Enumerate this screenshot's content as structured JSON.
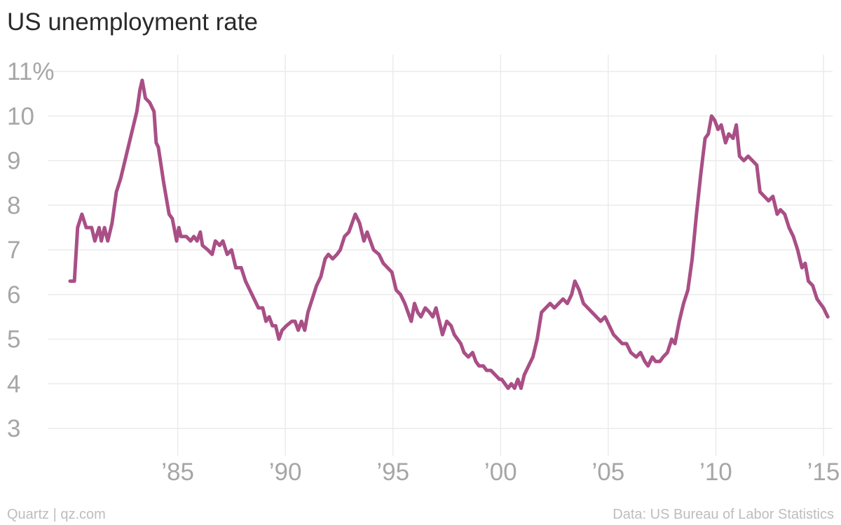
{
  "page": {
    "source_left": "Quartz | qz.com",
    "source_right": "Data: US Bureau of Labor Statistics"
  },
  "colors": {
    "line": "#a94f86",
    "grid": "#ebebeb",
    "tick_label": "#a6a6a6",
    "title": "#2a2a2a",
    "footer": "#bdbdbd"
  },
  "chart_data": {
    "type": "line",
    "title": "US unemployment rate",
    "xlabel": "",
    "ylabel": "",
    "y_range": [
      3,
      11
    ],
    "x_range": [
      1980.0,
      2015.2
    ],
    "grid": true,
    "y_ticks": [
      {
        "value": 3,
        "label": "3"
      },
      {
        "value": 4,
        "label": "4"
      },
      {
        "value": 5,
        "label": "5"
      },
      {
        "value": 6,
        "label": "6"
      },
      {
        "value": 7,
        "label": "7"
      },
      {
        "value": 8,
        "label": "8"
      },
      {
        "value": 9,
        "label": "9"
      },
      {
        "value": 10,
        "label": "10"
      },
      {
        "value": 11,
        "label": "11%"
      }
    ],
    "x_ticks": [
      {
        "value": 1985,
        "label": "’85"
      },
      {
        "value": 1990,
        "label": "’90"
      },
      {
        "value": 1995,
        "label": "’95"
      },
      {
        "value": 2000,
        "label": "’00"
      },
      {
        "value": 2005,
        "label": "’05"
      },
      {
        "value": 2010,
        "label": "’10"
      },
      {
        "value": 2015,
        "label": "’15"
      }
    ],
    "series": [
      {
        "values": [
          [
            1980.0,
            6.3
          ],
          [
            1980.2,
            6.3
          ],
          [
            1980.35,
            7.5
          ],
          [
            1980.55,
            7.8
          ],
          [
            1980.75,
            7.5
          ],
          [
            1981.0,
            7.5
          ],
          [
            1981.15,
            7.2
          ],
          [
            1981.35,
            7.5
          ],
          [
            1981.45,
            7.2
          ],
          [
            1981.6,
            7.5
          ],
          [
            1981.75,
            7.2
          ],
          [
            1981.95,
            7.6
          ],
          [
            1982.15,
            8.3
          ],
          [
            1982.35,
            8.6
          ],
          [
            1982.55,
            9.0
          ],
          [
            1982.75,
            9.4
          ],
          [
            1982.95,
            9.8
          ],
          [
            1983.1,
            10.1
          ],
          [
            1983.25,
            10.6
          ],
          [
            1983.35,
            10.8
          ],
          [
            1983.5,
            10.4
          ],
          [
            1983.7,
            10.3
          ],
          [
            1983.9,
            10.1
          ],
          [
            1984.0,
            9.4
          ],
          [
            1984.1,
            9.3
          ],
          [
            1984.35,
            8.5
          ],
          [
            1984.6,
            7.8
          ],
          [
            1984.75,
            7.7
          ],
          [
            1984.95,
            7.2
          ],
          [
            1985.05,
            7.5
          ],
          [
            1985.15,
            7.3
          ],
          [
            1985.4,
            7.3
          ],
          [
            1985.6,
            7.2
          ],
          [
            1985.75,
            7.3
          ],
          [
            1985.9,
            7.2
          ],
          [
            1986.05,
            7.4
          ],
          [
            1986.15,
            7.1
          ],
          [
            1986.4,
            7.0
          ],
          [
            1986.6,
            6.9
          ],
          [
            1986.75,
            7.2
          ],
          [
            1986.95,
            7.1
          ],
          [
            1987.1,
            7.2
          ],
          [
            1987.3,
            6.9
          ],
          [
            1987.5,
            7.0
          ],
          [
            1987.7,
            6.6
          ],
          [
            1987.95,
            6.6
          ],
          [
            1988.15,
            6.3
          ],
          [
            1988.35,
            6.1
          ],
          [
            1988.55,
            5.9
          ],
          [
            1988.75,
            5.7
          ],
          [
            1988.95,
            5.7
          ],
          [
            1989.1,
            5.4
          ],
          [
            1989.25,
            5.5
          ],
          [
            1989.4,
            5.3
          ],
          [
            1989.55,
            5.3
          ],
          [
            1989.7,
            5.0
          ],
          [
            1989.85,
            5.2
          ],
          [
            1990.05,
            5.3
          ],
          [
            1990.3,
            5.4
          ],
          [
            1990.45,
            5.4
          ],
          [
            1990.6,
            5.2
          ],
          [
            1990.75,
            5.4
          ],
          [
            1990.9,
            5.2
          ],
          [
            1991.05,
            5.6
          ],
          [
            1991.25,
            5.9
          ],
          [
            1991.45,
            6.2
          ],
          [
            1991.65,
            6.4
          ],
          [
            1991.85,
            6.8
          ],
          [
            1992.0,
            6.9
          ],
          [
            1992.2,
            6.8
          ],
          [
            1992.4,
            6.9
          ],
          [
            1992.55,
            7.0
          ],
          [
            1992.75,
            7.3
          ],
          [
            1992.95,
            7.4
          ],
          [
            1993.1,
            7.6
          ],
          [
            1993.25,
            7.8
          ],
          [
            1993.45,
            7.6
          ],
          [
            1993.65,
            7.2
          ],
          [
            1993.8,
            7.4
          ],
          [
            1993.95,
            7.2
          ],
          [
            1994.1,
            7.0
          ],
          [
            1994.35,
            6.9
          ],
          [
            1994.55,
            6.7
          ],
          [
            1994.75,
            6.6
          ],
          [
            1994.95,
            6.5
          ],
          [
            1995.15,
            6.1
          ],
          [
            1995.35,
            6.0
          ],
          [
            1995.55,
            5.8
          ],
          [
            1995.7,
            5.6
          ],
          [
            1995.85,
            5.4
          ],
          [
            1996.0,
            5.8
          ],
          [
            1996.15,
            5.6
          ],
          [
            1996.3,
            5.5
          ],
          [
            1996.5,
            5.7
          ],
          [
            1996.7,
            5.6
          ],
          [
            1996.85,
            5.5
          ],
          [
            1997.0,
            5.7
          ],
          [
            1997.15,
            5.4
          ],
          [
            1997.3,
            5.1
          ],
          [
            1997.5,
            5.4
          ],
          [
            1997.7,
            5.3
          ],
          [
            1997.85,
            5.1
          ],
          [
            1998.0,
            5.0
          ],
          [
            1998.15,
            4.9
          ],
          [
            1998.3,
            4.7
          ],
          [
            1998.5,
            4.6
          ],
          [
            1998.7,
            4.7
          ],
          [
            1998.85,
            4.5
          ],
          [
            1999.0,
            4.4
          ],
          [
            1999.2,
            4.4
          ],
          [
            1999.35,
            4.3
          ],
          [
            1999.55,
            4.3
          ],
          [
            1999.75,
            4.2
          ],
          [
            1999.95,
            4.1
          ],
          [
            2000.05,
            4.1
          ],
          [
            2000.2,
            4.0
          ],
          [
            2000.35,
            3.9
          ],
          [
            2000.5,
            4.0
          ],
          [
            2000.65,
            3.9
          ],
          [
            2000.8,
            4.1
          ],
          [
            2000.95,
            3.9
          ],
          [
            2001.1,
            4.2
          ],
          [
            2001.3,
            4.4
          ],
          [
            2001.5,
            4.6
          ],
          [
            2001.7,
            5.0
          ],
          [
            2001.9,
            5.6
          ],
          [
            2002.1,
            5.7
          ],
          [
            2002.3,
            5.8
          ],
          [
            2002.5,
            5.7
          ],
          [
            2002.7,
            5.8
          ],
          [
            2002.9,
            5.9
          ],
          [
            2003.1,
            5.8
          ],
          [
            2003.3,
            6.0
          ],
          [
            2003.45,
            6.3
          ],
          [
            2003.65,
            6.1
          ],
          [
            2003.85,
            5.8
          ],
          [
            2004.05,
            5.7
          ],
          [
            2004.25,
            5.6
          ],
          [
            2004.45,
            5.5
          ],
          [
            2004.65,
            5.4
          ],
          [
            2004.85,
            5.5
          ],
          [
            2005.05,
            5.3
          ],
          [
            2005.25,
            5.1
          ],
          [
            2005.45,
            5.0
          ],
          [
            2005.65,
            4.9
          ],
          [
            2005.85,
            4.9
          ],
          [
            2006.05,
            4.7
          ],
          [
            2006.3,
            4.6
          ],
          [
            2006.5,
            4.7
          ],
          [
            2006.7,
            4.5
          ],
          [
            2006.85,
            4.4
          ],
          [
            2007.05,
            4.6
          ],
          [
            2007.2,
            4.5
          ],
          [
            2007.4,
            4.5
          ],
          [
            2007.55,
            4.6
          ],
          [
            2007.75,
            4.7
          ],
          [
            2007.95,
            5.0
          ],
          [
            2008.1,
            4.9
          ],
          [
            2008.3,
            5.4
          ],
          [
            2008.5,
            5.8
          ],
          [
            2008.7,
            6.1
          ],
          [
            2008.9,
            6.8
          ],
          [
            2009.1,
            7.8
          ],
          [
            2009.3,
            8.7
          ],
          [
            2009.5,
            9.5
          ],
          [
            2009.65,
            9.6
          ],
          [
            2009.8,
            10.0
          ],
          [
            2009.95,
            9.9
          ],
          [
            2010.1,
            9.7
          ],
          [
            2010.25,
            9.8
          ],
          [
            2010.45,
            9.4
          ],
          [
            2010.6,
            9.6
          ],
          [
            2010.8,
            9.5
          ],
          [
            2010.95,
            9.8
          ],
          [
            2011.1,
            9.1
          ],
          [
            2011.3,
            9.0
          ],
          [
            2011.5,
            9.1
          ],
          [
            2011.7,
            9.0
          ],
          [
            2011.9,
            8.9
          ],
          [
            2012.05,
            8.3
          ],
          [
            2012.25,
            8.2
          ],
          [
            2012.45,
            8.1
          ],
          [
            2012.65,
            8.2
          ],
          [
            2012.85,
            7.8
          ],
          [
            2013.0,
            7.9
          ],
          [
            2013.2,
            7.8
          ],
          [
            2013.4,
            7.5
          ],
          [
            2013.6,
            7.3
          ],
          [
            2013.8,
            7.0
          ],
          [
            2014.0,
            6.6
          ],
          [
            2014.15,
            6.7
          ],
          [
            2014.3,
            6.3
          ],
          [
            2014.5,
            6.2
          ],
          [
            2014.7,
            5.9
          ],
          [
            2014.85,
            5.8
          ],
          [
            2015.0,
            5.7
          ],
          [
            2015.2,
            5.5
          ]
        ]
      }
    ]
  }
}
